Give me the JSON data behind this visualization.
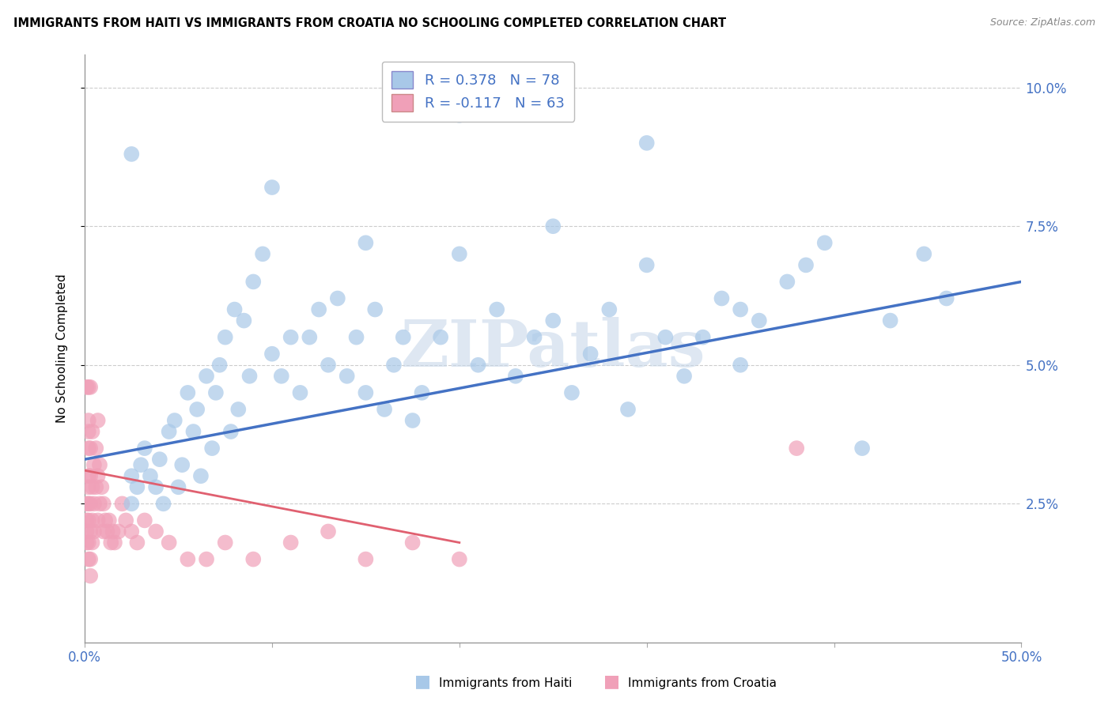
{
  "title": "IMMIGRANTS FROM HAITI VS IMMIGRANTS FROM CROATIA NO SCHOOLING COMPLETED CORRELATION CHART",
  "source": "Source: ZipAtlas.com",
  "ylabel": "No Schooling Completed",
  "xlim": [
    0.0,
    0.5
  ],
  "ylim": [
    0.0,
    0.106
  ],
  "legend_haiti_r": "R = 0.378",
  "legend_haiti_n": "N = 78",
  "legend_croatia_r": "R = -0.117",
  "legend_croatia_n": "N = 63",
  "haiti_color": "#a8c8e8",
  "croatia_color": "#f0a0b8",
  "haiti_line_color": "#4472c4",
  "croatia_line_color": "#e06070",
  "watermark": "ZIPatlas",
  "watermark_color": "#c8d8ea",
  "haiti_line_x0": 0.0,
  "haiti_line_y0": 0.033,
  "haiti_line_x1": 0.5,
  "haiti_line_y1": 0.065,
  "croatia_line_x0": 0.0,
  "croatia_line_y0": 0.031,
  "croatia_line_x1": 0.2,
  "croatia_line_y1": 0.018,
  "haiti_x": [
    0.025,
    0.025,
    0.028,
    0.03,
    0.032,
    0.035,
    0.038,
    0.04,
    0.042,
    0.045,
    0.048,
    0.05,
    0.052,
    0.055,
    0.058,
    0.06,
    0.062,
    0.065,
    0.068,
    0.07,
    0.072,
    0.075,
    0.078,
    0.08,
    0.082,
    0.085,
    0.088,
    0.09,
    0.095,
    0.1,
    0.105,
    0.11,
    0.115,
    0.12,
    0.125,
    0.13,
    0.135,
    0.14,
    0.145,
    0.15,
    0.155,
    0.16,
    0.165,
    0.17,
    0.175,
    0.18,
    0.19,
    0.2,
    0.21,
    0.22,
    0.23,
    0.24,
    0.25,
    0.26,
    0.27,
    0.28,
    0.29,
    0.3,
    0.31,
    0.32,
    0.33,
    0.34,
    0.35,
    0.36,
    0.375,
    0.385,
    0.395,
    0.415,
    0.43,
    0.448,
    0.46,
    0.025,
    0.1,
    0.15,
    0.2,
    0.25,
    0.3,
    0.35
  ],
  "haiti_y": [
    0.03,
    0.025,
    0.028,
    0.032,
    0.035,
    0.03,
    0.028,
    0.033,
    0.025,
    0.038,
    0.04,
    0.028,
    0.032,
    0.045,
    0.038,
    0.042,
    0.03,
    0.048,
    0.035,
    0.045,
    0.05,
    0.055,
    0.038,
    0.06,
    0.042,
    0.058,
    0.048,
    0.065,
    0.07,
    0.052,
    0.048,
    0.055,
    0.045,
    0.055,
    0.06,
    0.05,
    0.062,
    0.048,
    0.055,
    0.045,
    0.06,
    0.042,
    0.05,
    0.055,
    0.04,
    0.045,
    0.055,
    0.07,
    0.05,
    0.06,
    0.048,
    0.055,
    0.058,
    0.045,
    0.052,
    0.06,
    0.042,
    0.09,
    0.055,
    0.048,
    0.055,
    0.062,
    0.05,
    0.058,
    0.065,
    0.068,
    0.072,
    0.035,
    0.058,
    0.07,
    0.062,
    0.088,
    0.082,
    0.072,
    0.095,
    0.075,
    0.068,
    0.06
  ],
  "croatia_x": [
    0.001,
    0.001,
    0.001,
    0.001,
    0.002,
    0.002,
    0.002,
    0.002,
    0.002,
    0.002,
    0.002,
    0.002,
    0.002,
    0.003,
    0.003,
    0.003,
    0.003,
    0.003,
    0.003,
    0.004,
    0.004,
    0.004,
    0.004,
    0.005,
    0.005,
    0.005,
    0.006,
    0.006,
    0.007,
    0.007,
    0.007,
    0.008,
    0.008,
    0.009,
    0.01,
    0.01,
    0.011,
    0.012,
    0.013,
    0.014,
    0.015,
    0.016,
    0.018,
    0.02,
    0.022,
    0.025,
    0.028,
    0.032,
    0.038,
    0.045,
    0.055,
    0.065,
    0.075,
    0.09,
    0.11,
    0.13,
    0.15,
    0.175,
    0.2,
    0.38,
    0.001,
    0.002,
    0.003
  ],
  "croatia_y": [
    0.02,
    0.022,
    0.018,
    0.025,
    0.03,
    0.028,
    0.025,
    0.022,
    0.018,
    0.015,
    0.035,
    0.04,
    0.038,
    0.03,
    0.025,
    0.02,
    0.015,
    0.012,
    0.035,
    0.038,
    0.028,
    0.022,
    0.018,
    0.032,
    0.025,
    0.02,
    0.035,
    0.028,
    0.04,
    0.03,
    0.022,
    0.032,
    0.025,
    0.028,
    0.025,
    0.02,
    0.022,
    0.02,
    0.022,
    0.018,
    0.02,
    0.018,
    0.02,
    0.025,
    0.022,
    0.02,
    0.018,
    0.022,
    0.02,
    0.018,
    0.015,
    0.015,
    0.018,
    0.015,
    0.018,
    0.02,
    0.015,
    0.018,
    0.015,
    0.035,
    0.046,
    0.046,
    0.046
  ]
}
